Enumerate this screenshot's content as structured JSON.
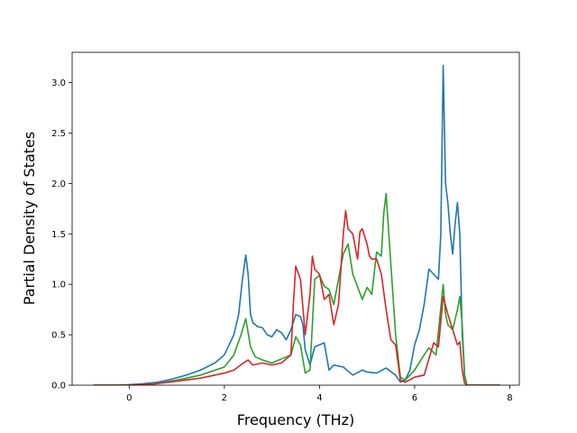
{
  "chart_data": {
    "type": "line",
    "title": "",
    "xlabel": "Frequency (THz)",
    "ylabel": "Partial Density of States",
    "xlim": [
      -1.2,
      8.2
    ],
    "ylim": [
      0,
      3.3
    ],
    "xticks": [
      0,
      2,
      4,
      6,
      8
    ],
    "xtick_labels": [
      "0",
      "2",
      "4",
      "6",
      "8"
    ],
    "yticks": [
      0,
      0.5,
      1,
      1.5,
      2,
      2.5,
      3
    ],
    "ytick_labels": [
      "0.0",
      "0.5",
      "1.0",
      "1.5",
      "2.0",
      "2.5",
      "3.0"
    ],
    "grid": false,
    "legend": "none",
    "series": [
      {
        "color": "#1f77b4",
        "x": [
          -0.75,
          -0.3,
          0,
          0.3,
          0.6,
          0.9,
          1.2,
          1.5,
          1.8,
          2.0,
          2.2,
          2.3,
          2.38,
          2.45,
          2.5,
          2.55,
          2.6,
          2.7,
          2.8,
          2.9,
          3.0,
          3.1,
          3.2,
          3.3,
          3.4,
          3.5,
          3.6,
          3.65,
          3.7,
          3.8,
          3.9,
          4.0,
          4.1,
          4.2,
          4.3,
          4.5,
          4.7,
          4.9,
          5.0,
          5.2,
          5.4,
          5.6,
          5.7,
          5.8,
          5.9,
          6.0,
          6.1,
          6.2,
          6.3,
          6.4,
          6.5,
          6.55,
          6.6,
          6.65,
          6.7,
          6.75,
          6.8,
          6.85,
          6.9,
          6.95,
          7.0,
          7.05,
          7.1,
          7.5,
          7.8
        ],
        "values": [
          0,
          0,
          0.005,
          0.015,
          0.03,
          0.06,
          0.1,
          0.15,
          0.22,
          0.3,
          0.5,
          0.7,
          1.05,
          1.29,
          1.1,
          0.7,
          0.62,
          0.58,
          0.57,
          0.5,
          0.48,
          0.55,
          0.52,
          0.45,
          0.55,
          0.7,
          0.68,
          0.6,
          0.35,
          0.2,
          0.38,
          0.4,
          0.42,
          0.15,
          0.2,
          0.18,
          0.1,
          0.15,
          0.13,
          0.12,
          0.17,
          0.1,
          0.03,
          0.05,
          0.15,
          0.4,
          0.55,
          0.8,
          1.15,
          1.1,
          1.05,
          1.5,
          3.17,
          2.0,
          1.8,
          1.5,
          1.3,
          1.6,
          1.81,
          1.5,
          0.5,
          0.1,
          0,
          0,
          0
        ]
      },
      {
        "color": "#2ca02c",
        "x": [
          -0.75,
          0,
          0.5,
          1.0,
          1.5,
          2.0,
          2.2,
          2.35,
          2.45,
          2.55,
          2.65,
          2.8,
          3.0,
          3.2,
          3.4,
          3.5,
          3.6,
          3.7,
          3.8,
          3.9,
          4.0,
          4.1,
          4.2,
          4.3,
          4.5,
          4.6,
          4.7,
          4.9,
          5.0,
          5.1,
          5.2,
          5.3,
          5.35,
          5.4,
          5.5,
          5.6,
          5.7,
          5.8,
          5.9,
          6.0,
          6.2,
          6.3,
          6.45,
          6.6,
          6.65,
          6.7,
          6.8,
          6.9,
          6.95,
          7.0,
          7.05,
          7.1,
          7.5,
          7.8
        ],
        "values": [
          0,
          0,
          0.01,
          0.05,
          0.1,
          0.18,
          0.3,
          0.5,
          0.66,
          0.38,
          0.28,
          0.25,
          0.22,
          0.26,
          0.3,
          0.48,
          0.4,
          0.12,
          0.15,
          1.05,
          1.09,
          0.98,
          0.95,
          0.8,
          1.3,
          1.4,
          1.1,
          0.85,
          0.97,
          0.9,
          1.32,
          1.28,
          1.7,
          1.9,
          1.2,
          0.5,
          0.08,
          0.05,
          0.1,
          0.15,
          0.3,
          0.37,
          0.3,
          1.0,
          0.7,
          0.6,
          0.55,
          0.75,
          0.88,
          0.6,
          0.1,
          0,
          0,
          0
        ]
      },
      {
        "color": "#d62728",
        "x": [
          -0.75,
          0,
          0.5,
          1.0,
          1.5,
          2.0,
          2.2,
          2.4,
          2.5,
          2.6,
          2.8,
          3.0,
          3.2,
          3.4,
          3.45,
          3.5,
          3.6,
          3.7,
          3.8,
          3.85,
          3.9,
          4.0,
          4.1,
          4.2,
          4.3,
          4.4,
          4.5,
          4.55,
          4.6,
          4.7,
          4.8,
          4.85,
          4.9,
          5.0,
          5.05,
          5.1,
          5.2,
          5.3,
          5.4,
          5.5,
          5.6,
          5.7,
          5.8,
          6.0,
          6.2,
          6.4,
          6.5,
          6.6,
          6.7,
          6.8,
          6.9,
          6.95,
          7.0,
          7.05,
          7.1,
          7.5,
          7.8
        ],
        "values": [
          0,
          0,
          0.01,
          0.04,
          0.07,
          0.12,
          0.15,
          0.22,
          0.25,
          0.2,
          0.22,
          0.2,
          0.22,
          0.3,
          0.8,
          1.18,
          1.05,
          0.5,
          0.9,
          1.28,
          1.15,
          1.1,
          0.85,
          0.9,
          0.6,
          0.8,
          1.5,
          1.73,
          1.55,
          1.5,
          1.25,
          1.52,
          1.55,
          1.4,
          1.28,
          1.25,
          1.25,
          1.1,
          0.75,
          0.45,
          0.4,
          0.05,
          0.03,
          0.08,
          0.1,
          0.42,
          0.38,
          0.88,
          0.7,
          0.55,
          0.4,
          0.43,
          0.15,
          0.02,
          0,
          0,
          0
        ]
      }
    ]
  }
}
